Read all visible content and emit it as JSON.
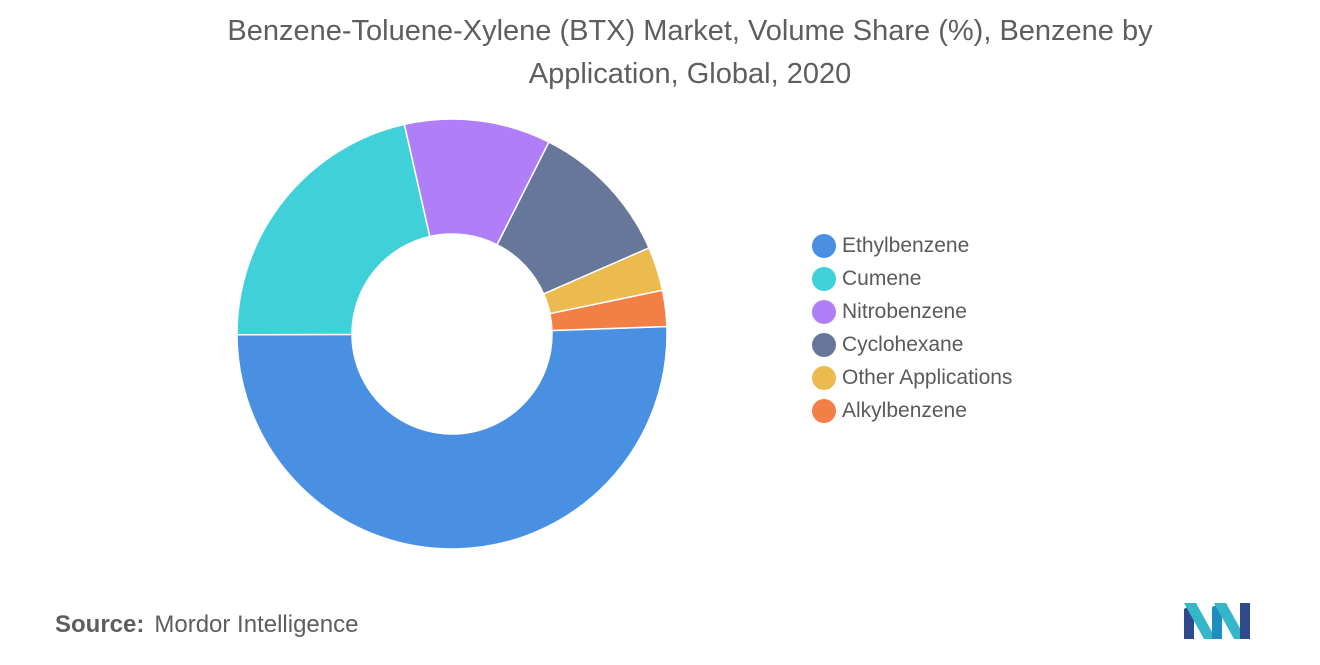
{
  "title": "Benzene-Toluene-Xylene (BTX) Market, Volume Share (%), Benzene by Application, Global, 2020",
  "source": {
    "label": "Source:",
    "text": "Mordor Intelligence"
  },
  "logo": {
    "icon": "mordor-intelligence-logo",
    "colors": [
      "#2e4a8a",
      "#35b7c9",
      "#1d8fbf"
    ]
  },
  "chart_data": {
    "type": "pie",
    "style": "donut",
    "legend_position": "right",
    "slices": [
      {
        "label": "Ethylbenzene",
        "value": 50.5,
        "color": "#4a90e2"
      },
      {
        "label": "Cumene",
        "value": 21.5,
        "color": "#3fd0da"
      },
      {
        "label": "Nitrobenzene",
        "value": 11.0,
        "color": "#b07ff8"
      },
      {
        "label": "Cyclohexane",
        "value": 11.0,
        "color": "#66779a"
      },
      {
        "label": "Other Applications",
        "value": 3.3,
        "color": "#ebbb4f"
      },
      {
        "label": "Alkylbenzene",
        "value": 2.7,
        "color": "#f27f45"
      }
    ]
  }
}
